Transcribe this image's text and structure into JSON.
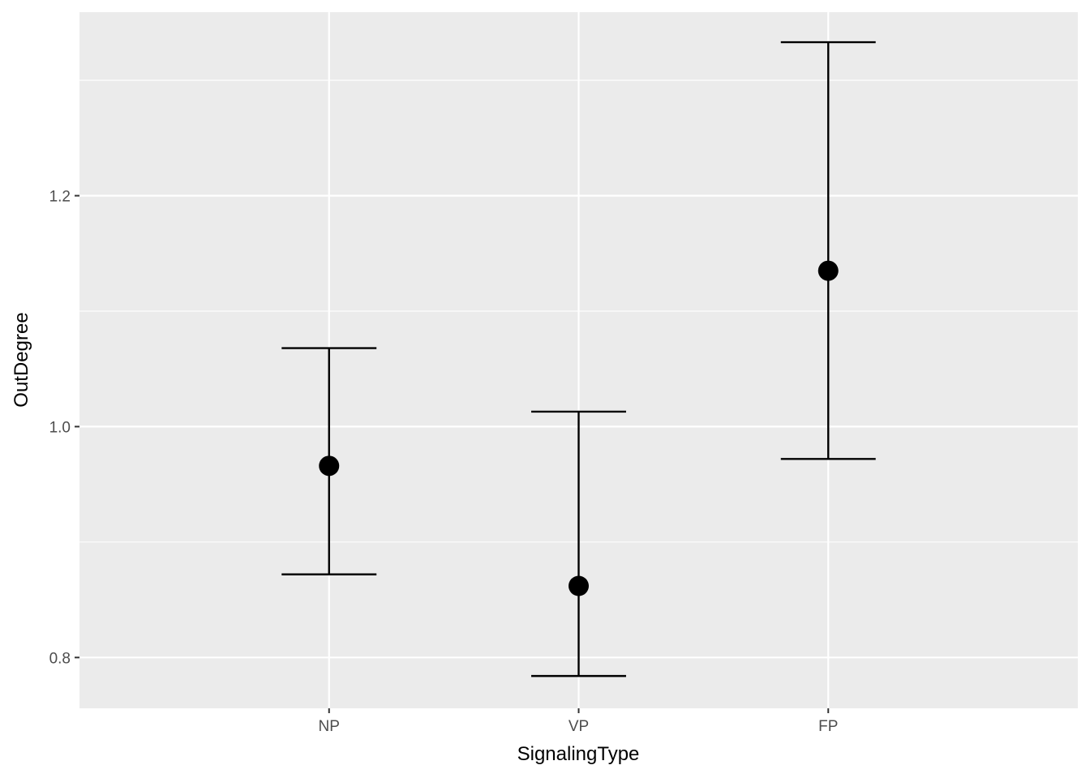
{
  "chart_data": {
    "type": "scatter",
    "subtype": "point-with-errorbars",
    "title": "",
    "xlabel": "SignalingType",
    "ylabel": "OutDegree",
    "categories": [
      "NP",
      "VP",
      "FP"
    ],
    "series": [
      {
        "values": [
          0.966,
          0.862,
          1.135
        ],
        "lower": [
          0.872,
          0.784,
          0.972
        ],
        "upper": [
          1.068,
          1.013,
          1.333
        ]
      }
    ],
    "ylim": [
      0.756,
      1.359
    ],
    "yticks": [
      0.8,
      1.0,
      1.2
    ],
    "ytick_labels": [
      "0.8",
      "1.0",
      "1.2"
    ],
    "grid": true,
    "legend": "none",
    "colors": {
      "panel_background": "#EBEBEB",
      "grid_line": "#FFFFFF",
      "mark": "#000000",
      "tick_text": "#4D4D4D",
      "axis_text": "#000000"
    }
  }
}
